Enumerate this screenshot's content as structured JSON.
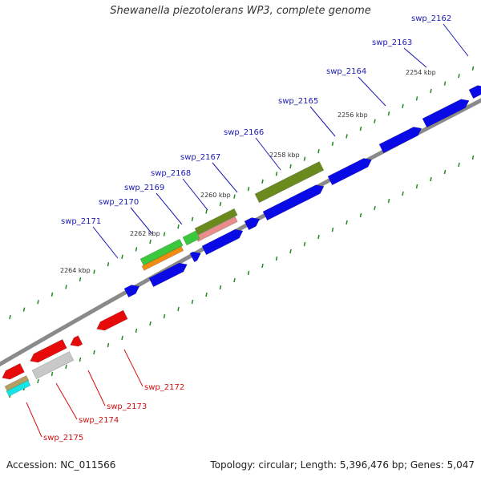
{
  "title": "Shewanella piezotolerans WP3, complete genome",
  "footer": {
    "accession": "Accession: NC_011566",
    "summary": "Topology: circular; Length: 5,396,476 bp; Genes: 5,047"
  },
  "ticks": [
    {
      "label": "2254 kbp"
    },
    {
      "label": "2256 kbp"
    },
    {
      "label": "2258 kbp"
    },
    {
      "label": "2260 kbp"
    },
    {
      "label": "2262 kbp"
    },
    {
      "label": "2264 kbp"
    }
  ],
  "genes_top": [
    {
      "name": "swp_2162",
      "color": "#1a1ab4"
    },
    {
      "name": "swp_2163",
      "color": "#1a1ab4"
    },
    {
      "name": "swp_2164",
      "color": "#1a1ab4"
    },
    {
      "name": "swp_2165",
      "color": "#1a1ab4"
    },
    {
      "name": "swp_2166",
      "color": "#1a1ab4"
    },
    {
      "name": "swp_2167",
      "color": "#1a1ab4"
    },
    {
      "name": "swp_2168",
      "color": "#1a1ab4"
    },
    {
      "name": "swp_2169",
      "color": "#1a1ab4"
    },
    {
      "name": "swp_2170",
      "color": "#1a1ab4"
    },
    {
      "name": "swp_2171",
      "color": "#1a1ab4"
    }
  ],
  "genes_bottom": [
    {
      "name": "swp_2172",
      "color": "#d01010"
    },
    {
      "name": "swp_2173",
      "color": "#d01010"
    },
    {
      "name": "swp_2174",
      "color": "#d01010"
    },
    {
      "name": "swp_2175",
      "color": "#d01010"
    }
  ],
  "colors": {
    "forward_gene": "#0a0ae6",
    "reverse_gene": "#e60a0a",
    "backbone": "#8a8a8a",
    "tick": "#1e8c1e",
    "olive_feature": "#6b8a1e",
    "green_feature": "#3cc83c",
    "orange_feature": "#f08c14",
    "pink_feature": "#e88c8c",
    "gray_feature": "#c8c8c8",
    "cyan_feature": "#14e6e6",
    "tan_feature": "#b4a064"
  }
}
